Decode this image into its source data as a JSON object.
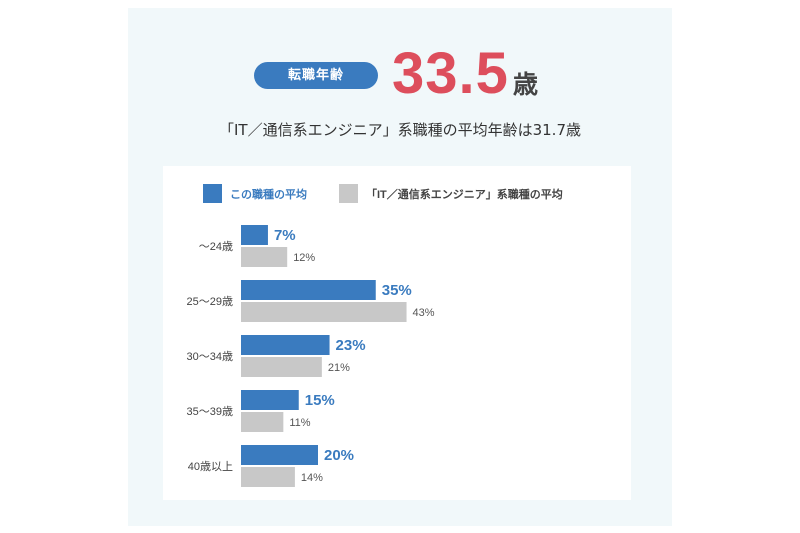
{
  "header": {
    "badge_label": "転職年齢",
    "average_age_value": "33.5",
    "average_age_unit": "歳",
    "subtitle": "「IT／通信系エンジニア」系職種の平均年齢は31.7歳"
  },
  "colors": {
    "primary": "#3a7bbf",
    "secondary": "#c8c8c8",
    "highlight": "#dd4e5c",
    "panel_bg": "#f1f8fa"
  },
  "chart_data": {
    "type": "bar",
    "orientation": "horizontal",
    "categories": [
      "～24歳",
      "25～29歳",
      "30～34歳",
      "35～39歳",
      "40歳以上"
    ],
    "series": [
      {
        "name": "この職種の平均",
        "values": [
          7,
          35,
          23,
          15,
          20
        ],
        "labels": [
          "7%",
          "35%",
          "23%",
          "15%",
          "20%"
        ],
        "color": "#3a7bbf"
      },
      {
        "name": "「IT／通信系エンジニア」系職種の平均",
        "values": [
          12,
          43,
          21,
          11,
          14
        ],
        "labels": [
          "12%",
          "43%",
          "21%",
          "11%",
          "14%"
        ],
        "color": "#c8c8c8"
      }
    ],
    "xlim": [
      0,
      100
    ],
    "unit": "%",
    "legend": "top",
    "grid": false,
    "title": "",
    "xlabel": "",
    "ylabel": ""
  }
}
